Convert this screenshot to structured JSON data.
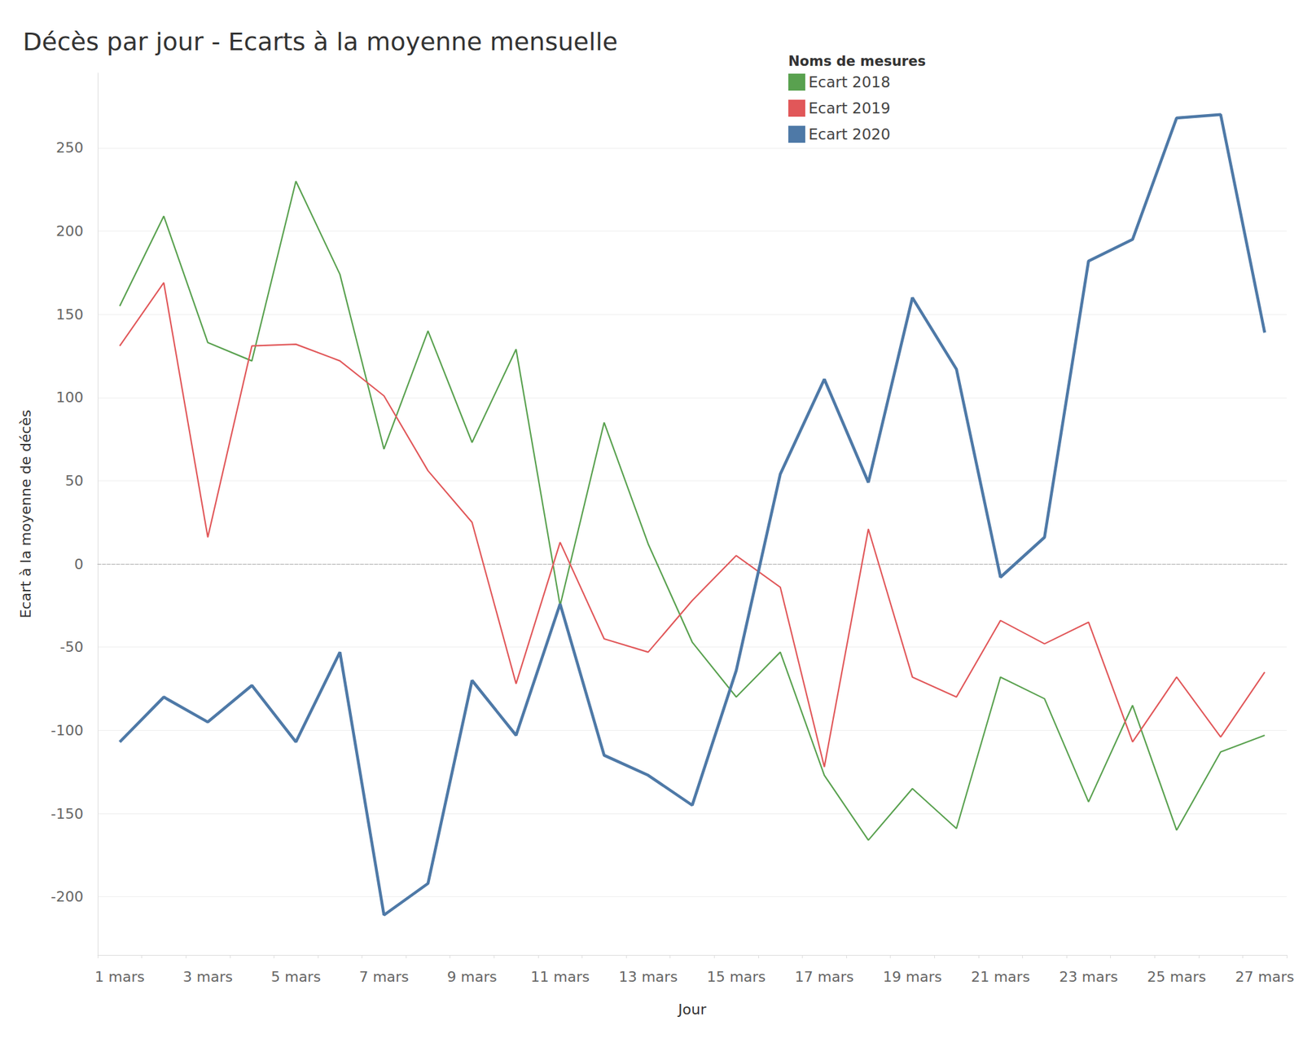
{
  "chart_data": {
    "type": "line",
    "title": "Décès par jour - Ecarts à la moyenne mensuelle",
    "x_label": "Jour",
    "y_label": "Ecart à la moyenne de décès",
    "legend_title": "Noms de mesures",
    "legend": "top",
    "grid": true,
    "categories": [
      "1 mars",
      null,
      "3 mars",
      null,
      "5 mars",
      null,
      "7 mars",
      null,
      "9 mars",
      null,
      "11 mars",
      null,
      "13 mars",
      null,
      "15 mars",
      null,
      "17 mars",
      null,
      "19 mars",
      null,
      "21 mars",
      null,
      "23 mars",
      null,
      "25 mars",
      null,
      "27 mars"
    ],
    "ylim": [
      -235,
      295
    ],
    "yticks": [
      -200,
      -150,
      -100,
      -50,
      0,
      50,
      100,
      150,
      200,
      250
    ],
    "series": [
      {
        "name": "Ecart 2018",
        "color": "#59a14f",
        "values": [
          155,
          209,
          133,
          122,
          230,
          174,
          69,
          140,
          73,
          129,
          -25,
          85,
          12,
          -47,
          -80,
          -53,
          -127,
          -166,
          -135,
          -159,
          -68,
          -81,
          -143,
          -85,
          -160,
          -113,
          -103
        ]
      },
      {
        "name": "Ecart 2019",
        "color": "#e15759",
        "values": [
          131,
          169,
          16,
          131,
          132,
          122,
          101,
          56,
          25,
          -72,
          13,
          -45,
          -53,
          -22,
          5,
          -14,
          -122,
          21,
          -68,
          -80,
          -34,
          -48,
          -35,
          -107,
          -68,
          -104,
          -65
        ]
      },
      {
        "name": "Ecart 2020",
        "color": "#4e79a7",
        "values": [
          -107,
          -80,
          -95,
          -73,
          -107,
          -53,
          -211,
          -192,
          -70,
          -103,
          -24,
          -115,
          -127,
          -145,
          -64,
          54,
          111,
          49,
          160,
          117,
          -8,
          16,
          182,
          195,
          268,
          270,
          139
        ]
      }
    ]
  }
}
